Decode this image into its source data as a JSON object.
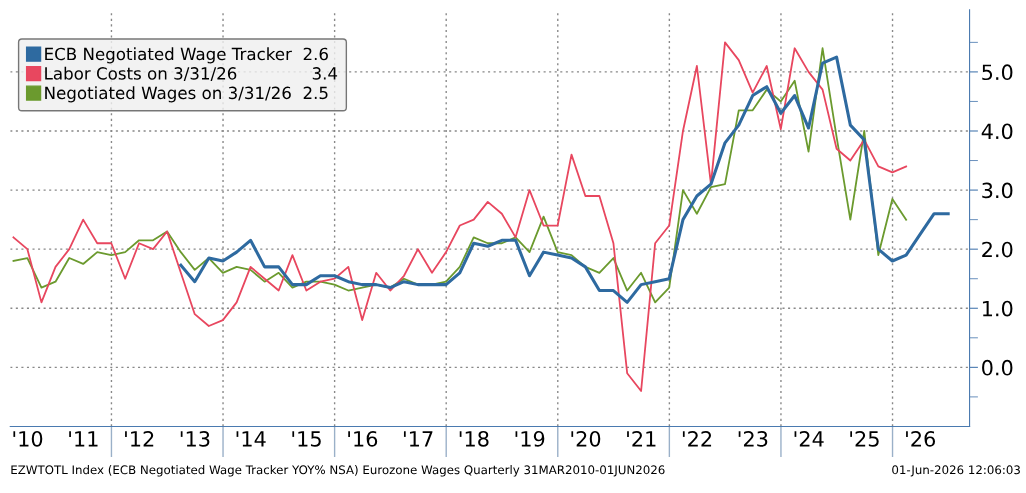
{
  "chart_data": {
    "type": "line",
    "x": [
      "2010-03-31",
      "2010-06-30",
      "2010-09-30",
      "2010-12-31",
      "2011-03-31",
      "2011-06-30",
      "2011-09-30",
      "2011-12-31",
      "2012-03-31",
      "2012-06-30",
      "2012-09-30",
      "2012-12-31",
      "2013-03-31",
      "2013-06-30",
      "2013-09-30",
      "2013-12-31",
      "2014-03-31",
      "2014-06-30",
      "2014-09-30",
      "2014-12-31",
      "2015-03-31",
      "2015-06-30",
      "2015-09-30",
      "2015-12-31",
      "2016-03-31",
      "2016-06-30",
      "2016-09-30",
      "2016-12-31",
      "2017-03-31",
      "2017-06-30",
      "2017-09-30",
      "2017-12-31",
      "2018-03-31",
      "2018-06-30",
      "2018-09-30",
      "2018-12-31",
      "2019-03-31",
      "2019-06-30",
      "2019-09-30",
      "2019-12-31",
      "2020-03-31",
      "2020-06-30",
      "2020-09-30",
      "2020-12-31",
      "2021-03-31",
      "2021-06-30",
      "2021-09-30",
      "2021-12-31",
      "2022-03-31",
      "2022-06-30",
      "2022-09-30",
      "2022-12-31",
      "2023-03-31",
      "2023-06-30",
      "2023-09-30",
      "2023-12-31",
      "2024-03-31",
      "2024-06-30",
      "2024-09-30",
      "2024-12-31",
      "2025-03-31",
      "2025-06-30",
      "2025-09-30",
      "2025-12-31",
      "2026-03-31",
      "2026-06-30",
      "2026-09-30",
      "2026-12-31"
    ],
    "series": [
      {
        "name": "ECB Negotiated Wage Tracker  2.6",
        "color": "#2e6aa0",
        "values": [
          null,
          null,
          null,
          null,
          null,
          null,
          null,
          null,
          null,
          null,
          null,
          null,
          1.73,
          1.45,
          1.85,
          1.8,
          1.95,
          2.15,
          1.7,
          1.7,
          1.4,
          1.4,
          1.55,
          1.55,
          1.45,
          1.4,
          1.4,
          1.35,
          1.45,
          1.4,
          1.4,
          1.4,
          1.6,
          2.1,
          2.05,
          2.15,
          2.15,
          1.55,
          1.95,
          1.9,
          1.85,
          1.7,
          1.3,
          1.3,
          1.1,
          1.4,
          1.45,
          1.5,
          2.5,
          2.9,
          3.1,
          3.8,
          4.1,
          4.6,
          4.75,
          4.3,
          4.6,
          4.05,
          5.15,
          5.25,
          4.1,
          3.85,
          2.0,
          1.8,
          1.9,
          2.25,
          2.6,
          2.6
        ]
      },
      {
        "name": "Labor Costs on 3/31/26              3.4",
        "color": "#e8475f",
        "values": [
          2.2,
          2.0,
          1.1,
          1.7,
          2.0,
          2.5,
          2.1,
          2.1,
          1.5,
          2.1,
          2.0,
          2.3,
          1.6,
          0.9,
          0.7,
          0.8,
          1.1,
          1.7,
          1.5,
          1.3,
          1.9,
          1.3,
          1.45,
          1.5,
          1.7,
          0.8,
          1.6,
          1.3,
          1.55,
          2.0,
          1.6,
          1.95,
          2.4,
          2.5,
          2.8,
          2.6,
          2.2,
          3.0,
          2.4,
          2.4,
          3.6,
          2.9,
          2.9,
          2.1,
          -0.1,
          -0.4,
          2.1,
          2.4,
          4.0,
          5.1,
          3.1,
          5.5,
          5.2,
          4.65,
          5.1,
          4.03,
          5.4,
          5.0,
          4.7,
          3.7,
          3.5,
          3.85,
          3.4,
          3.3,
          3.4,
          null,
          null,
          null
        ]
      },
      {
        "name": "Negotiated Wages on 3/31/26  2.5",
        "color": "#6b9a2e",
        "values": [
          1.8,
          1.85,
          1.35,
          1.45,
          1.85,
          1.75,
          1.95,
          1.9,
          1.95,
          2.15,
          2.15,
          2.3,
          1.95,
          1.65,
          1.85,
          1.6,
          1.7,
          1.65,
          1.45,
          1.6,
          1.35,
          1.45,
          1.45,
          1.4,
          1.3,
          1.35,
          1.4,
          1.35,
          1.5,
          1.4,
          1.4,
          1.45,
          1.7,
          2.2,
          2.1,
          2.1,
          2.2,
          1.95,
          2.55,
          1.95,
          1.9,
          1.7,
          1.6,
          1.85,
          1.3,
          1.6,
          1.1,
          1.35,
          3.0,
          2.6,
          3.05,
          3.1,
          4.35,
          4.35,
          4.7,
          4.5,
          4.85,
          3.65,
          5.4,
          3.9,
          2.5,
          4.0,
          1.9,
          2.85,
          2.5,
          null,
          null,
          null
        ]
      }
    ],
    "xlim": [
      "2010-03-10",
      "2027-05-20"
    ],
    "xticks": [
      {
        "value": "2010-07-01",
        "label": "'10"
      },
      {
        "value": "2011-07-01",
        "label": "'11"
      },
      {
        "value": "2012-07-01",
        "label": "'12"
      },
      {
        "value": "2013-07-01",
        "label": "'13"
      },
      {
        "value": "2014-07-01",
        "label": "'14"
      },
      {
        "value": "2015-07-01",
        "label": "'15"
      },
      {
        "value": "2016-07-01",
        "label": "'16"
      },
      {
        "value": "2017-07-01",
        "label": "'17"
      },
      {
        "value": "2018-07-01",
        "label": "'18"
      },
      {
        "value": "2019-07-01",
        "label": "'19"
      },
      {
        "value": "2020-07-01",
        "label": "'20"
      },
      {
        "value": "2021-07-01",
        "label": "'21"
      },
      {
        "value": "2022-07-01",
        "label": "'22"
      },
      {
        "value": "2023-07-01",
        "label": "'23"
      },
      {
        "value": "2024-07-01",
        "label": "'24"
      },
      {
        "value": "2025-07-01",
        "label": "'25"
      },
      {
        "value": "2026-07-01",
        "label": "'26"
      },
      {
        "value": "2012-01-01",
        "label": null
      },
      {
        "value": "2014-01-01",
        "label": null
      },
      {
        "value": "2016-01-01",
        "label": null
      },
      {
        "value": "2018-01-01",
        "label": null
      },
      {
        "value": "2020-01-01",
        "label": null
      },
      {
        "value": "2022-01-01",
        "label": null
      },
      {
        "value": "2024-01-01",
        "label": null
      },
      {
        "value": "2026-01-01",
        "label": null
      }
    ],
    "ylim": [
      -1.0,
      6.05
    ],
    "yticks": [
      {
        "value": 0,
        "label": "0.0"
      },
      {
        "value": 1,
        "label": "1.0"
      },
      {
        "value": 2,
        "label": "2.0"
      },
      {
        "value": 3,
        "label": "3.0"
      },
      {
        "value": 4,
        "label": "4.0"
      },
      {
        "value": 5,
        "label": "5.0"
      },
      {
        "value": -0.5,
        "label": null
      },
      {
        "value": 0.5,
        "label": null
      },
      {
        "value": 1.5,
        "label": null
      },
      {
        "value": 2.5,
        "label": null
      },
      {
        "value": 3.5,
        "label": null
      },
      {
        "value": 4.5,
        "label": null
      },
      {
        "value": 5.5,
        "label": null
      }
    ],
    "grid": true,
    "legend": "top left",
    "line_style": "solid",
    "marker": "none",
    "annotations": [
      "EZWTOTL Index (ECB Negotiated Wage Tracker YOY% NSA) Eurozone Wages Quarterly 31MAR2010-01JUN2026",
      "01-Jun-2026 12:06:03"
    ]
  }
}
